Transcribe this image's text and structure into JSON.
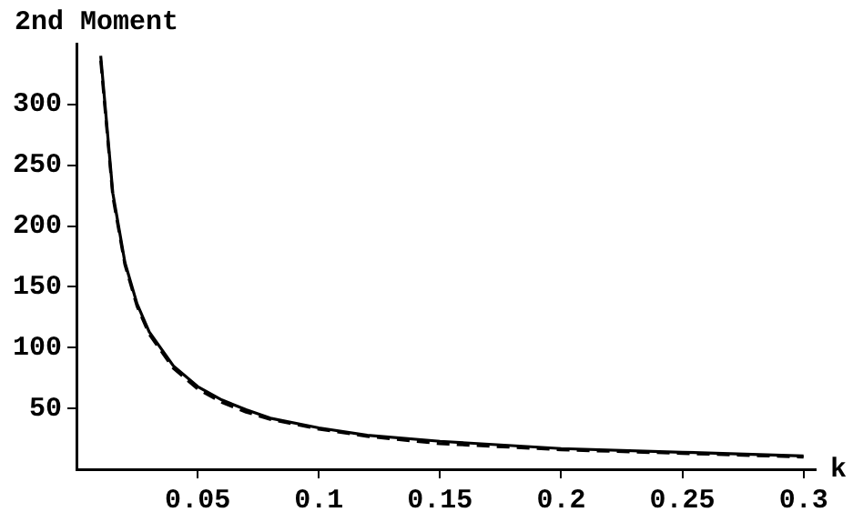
{
  "chart_data": {
    "type": "line",
    "xlabel": "k",
    "ylabel": "2nd Moment",
    "xlim": [
      0,
      0.305
    ],
    "ylim": [
      0,
      350
    ],
    "xticks": [
      0.05,
      0.1,
      0.15,
      0.2,
      0.25,
      0.3
    ],
    "yticks": [
      50,
      100,
      150,
      200,
      250,
      300
    ],
    "grid": false,
    "legend": false,
    "marker": "none",
    "series": [
      {
        "color": "#000000",
        "line_style": "solid",
        "x": [
          0.01,
          0.015,
          0.02,
          0.025,
          0.03,
          0.04,
          0.05,
          0.06,
          0.07,
          0.08,
          0.1,
          0.12,
          0.15,
          0.2,
          0.25,
          0.3
        ],
        "values": [
          340,
          227,
          170,
          136,
          113,
          85,
          68,
          57,
          49,
          42,
          34,
          28,
          23,
          17,
          14,
          11
        ]
      },
      {
        "color": "#000000",
        "line_style": "dashed",
        "x": [
          0.01,
          0.015,
          0.02,
          0.025,
          0.03,
          0.04,
          0.05,
          0.06,
          0.07,
          0.08,
          0.1,
          0.12,
          0.15,
          0.2,
          0.25,
          0.3
        ],
        "values": [
          336,
          224,
          168,
          134,
          111,
          83,
          66,
          55,
          47,
          41,
          33,
          27,
          21,
          16,
          13,
          10
        ]
      }
    ]
  }
}
